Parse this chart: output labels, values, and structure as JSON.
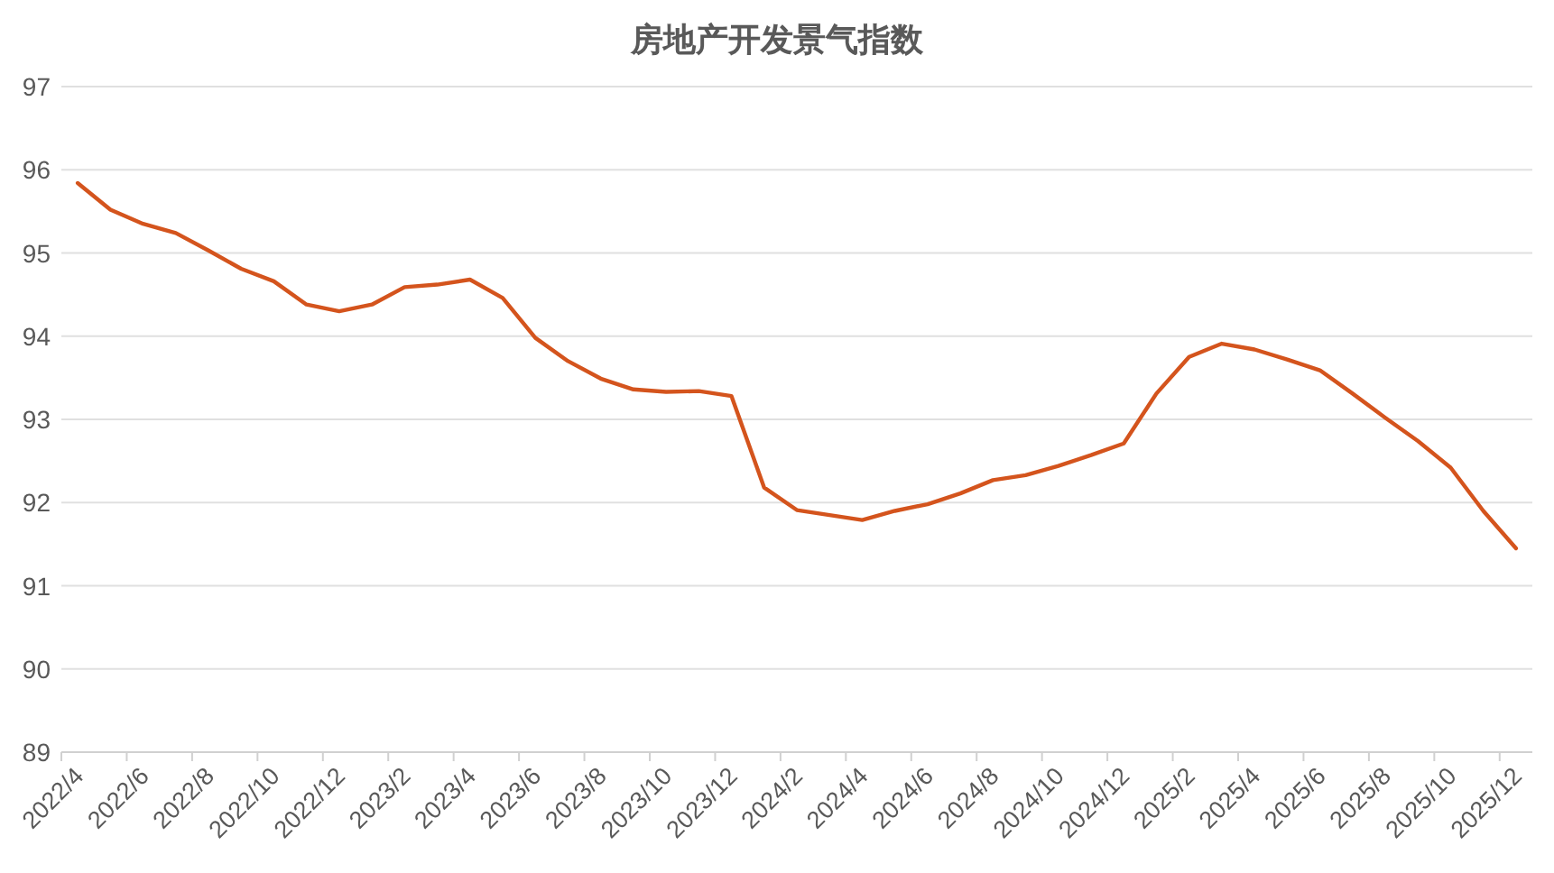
{
  "chart_data": {
    "type": "line",
    "title": "房地产开发景气指数",
    "categories": [
      "2022/4",
      null,
      "2022/6",
      null,
      "2022/8",
      null,
      "2022/10",
      null,
      "2022/12",
      null,
      "2023/2",
      null,
      "2023/4",
      null,
      "2023/6",
      null,
      "2023/8",
      null,
      "2023/10",
      null,
      "2023/12",
      null,
      "2024/2",
      null,
      "2024/4",
      null,
      "2024/6",
      null,
      "2024/8",
      null,
      "2024/10",
      null,
      "2024/12",
      null,
      "2025/2",
      null,
      "2025/4",
      null,
      "2025/6",
      null,
      "2025/8",
      null,
      "2025/10",
      null,
      "2025/12"
    ],
    "series": [
      {
        "color": "#d4541d",
        "values": [
          95.84,
          95.52,
          95.35,
          95.24,
          95.03,
          94.81,
          94.66,
          94.38,
          94.3,
          94.38,
          94.59,
          94.62,
          94.68,
          94.46,
          93.98,
          93.7,
          93.49,
          93.36,
          93.33,
          93.34,
          93.28,
          92.18,
          91.91,
          91.85,
          91.79,
          91.9,
          91.98,
          92.11,
          92.27,
          92.33,
          92.44,
          92.57,
          92.71,
          93.31,
          93.75,
          93.91,
          93.84,
          93.72,
          93.59,
          93.31,
          93.02,
          92.74,
          92.42,
          91.9,
          91.45
        ]
      }
    ],
    "ylim": [
      89,
      97
    ],
    "yticks": [
      89,
      90,
      91,
      92,
      93,
      94,
      95,
      96,
      97
    ],
    "grid": "y"
  }
}
